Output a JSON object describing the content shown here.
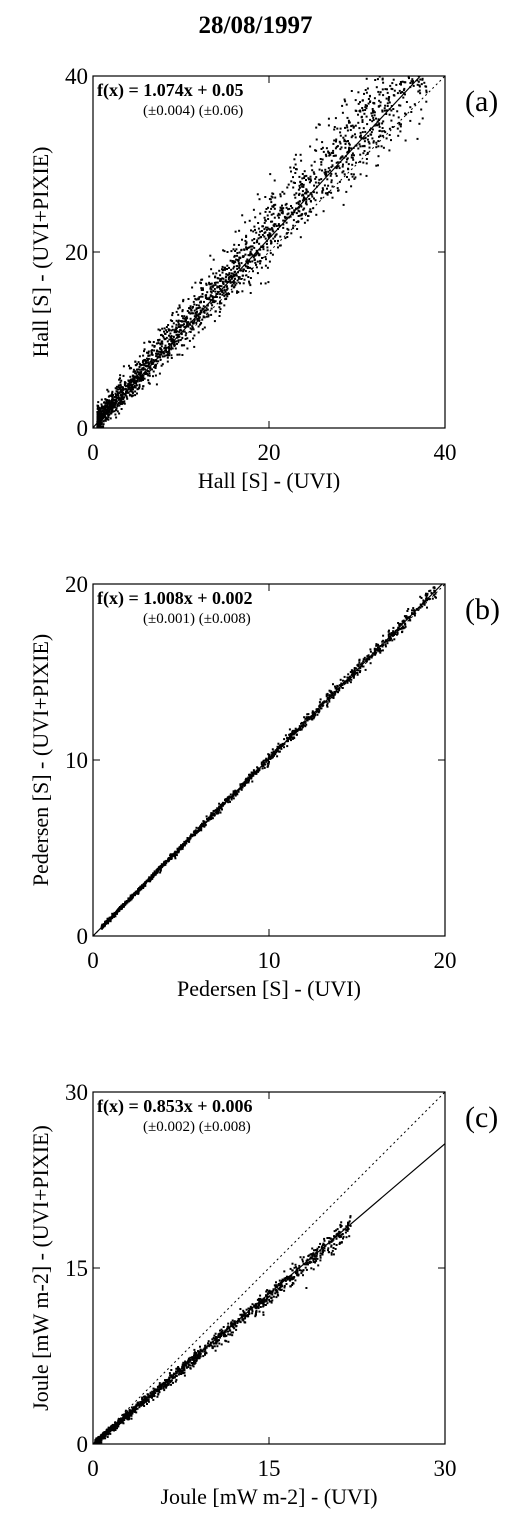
{
  "page_title": "28/08/1997",
  "chart_data": [
    {
      "type": "scatter",
      "panel_label": "(a)",
      "xlabel": "Hall [S] - (UVI)",
      "ylabel": "Hall [S] - (UVI+PIXIE)",
      "xlim": [
        0,
        40
      ],
      "ylim": [
        0,
        40
      ],
      "xticks": [
        0,
        20,
        40
      ],
      "yticks": [
        0,
        20,
        40
      ],
      "fit": {
        "label": "f(x) = 1.074x + 0.05",
        "slope": 1.074,
        "intercept": 0.05,
        "errors": "(±0.004)  (±0.06)"
      },
      "reference_line": "y = x (dotted)",
      "scatter_cloud": {
        "x_range": [
          0.5,
          38
        ],
        "spread": 3.0
      }
    },
    {
      "type": "scatter",
      "panel_label": "(b)",
      "xlabel": "Pedersen [S] - (UVI)",
      "ylabel": "Pedersen [S] - (UVI+PIXIE)",
      "xlim": [
        0,
        20
      ],
      "ylim": [
        0,
        20
      ],
      "xticks": [
        0,
        10,
        20
      ],
      "yticks": [
        0,
        10,
        20
      ],
      "fit": {
        "label": "f(x) = 1.008x + 0.002",
        "slope": 1.008,
        "intercept": 0.002,
        "errors": "(±0.001)  (±0.008)"
      },
      "reference_line": "y = x (dotted)",
      "scatter_cloud": {
        "x_range": [
          0.5,
          19.5
        ],
        "spread": 0.25
      }
    },
    {
      "type": "scatter",
      "panel_label": "(c)",
      "xlabel": "Joule [mW m-2] - (UVI)",
      "ylabel": "Joule [mW m-2] - (UVI+PIXIE)",
      "xlim": [
        0,
        30
      ],
      "ylim": [
        0,
        30
      ],
      "xticks": [
        0,
        15,
        30
      ],
      "yticks": [
        0,
        15,
        30
      ],
      "fit": {
        "label": "f(x) = 0.853x + 0.006",
        "slope": 0.853,
        "intercept": 0.006,
        "errors": "(±0.002)  (±0.008)"
      },
      "reference_line": "y = x (dotted)",
      "scatter_cloud": {
        "x_range": [
          0.2,
          22
        ],
        "spread": 0.6
      }
    }
  ]
}
